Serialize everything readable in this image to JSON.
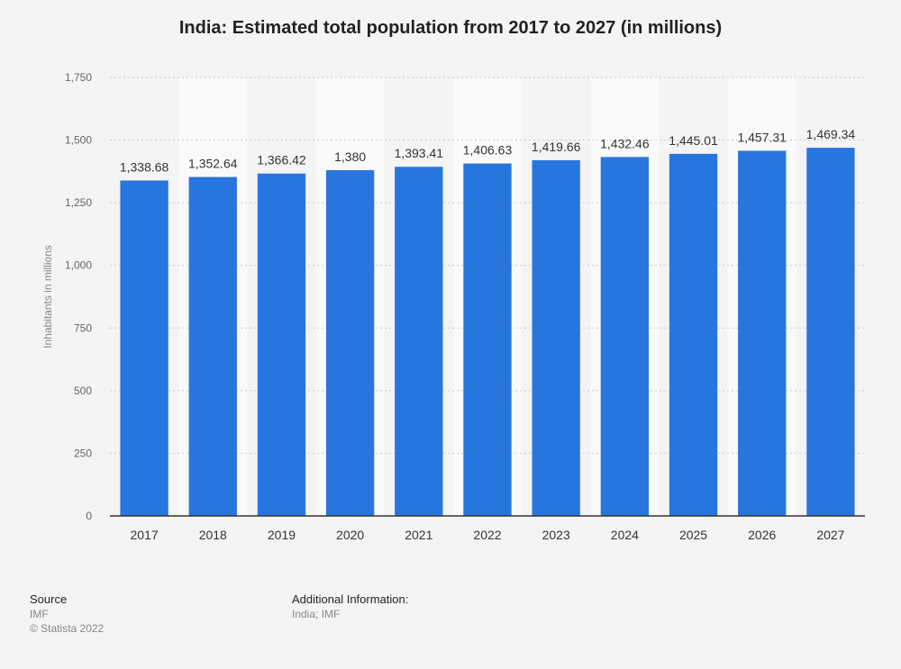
{
  "chart_data": {
    "type": "bar",
    "title": "India: Estimated total population from 2017 to 2027 (in millions)",
    "xlabel": "",
    "ylabel": "Inhabitants in millions",
    "categories": [
      "2017",
      "2018",
      "2019",
      "2020",
      "2021",
      "2022",
      "2023",
      "2024",
      "2025",
      "2026",
      "2027"
    ],
    "values": [
      1338.68,
      1352.64,
      1366.42,
      1380,
      1393.41,
      1406.63,
      1419.66,
      1432.46,
      1445.01,
      1457.31,
      1469.34
    ],
    "value_labels": [
      "1,338.68",
      "1,352.64",
      "1,366.42",
      "1,380",
      "1,393.41",
      "1,406.63",
      "1,419.66",
      "1,432.46",
      "1,445.01",
      "1,457.31",
      "1,469.34"
    ],
    "ylim": [
      0,
      1750
    ],
    "yticks": [
      0,
      250,
      500,
      750,
      1000,
      1250,
      1500,
      1750
    ],
    "ytick_labels": [
      "0",
      "250",
      "500",
      "750",
      "1,000",
      "1,250",
      "1,500",
      "1,750"
    ],
    "grid": true,
    "bar_color": "#2876dd"
  },
  "footer": {
    "source_heading": "Source",
    "source_name": "IMF",
    "copyright": "© Statista 2022",
    "additional_heading": "Additional Information:",
    "additional_text": "India; IMF"
  }
}
